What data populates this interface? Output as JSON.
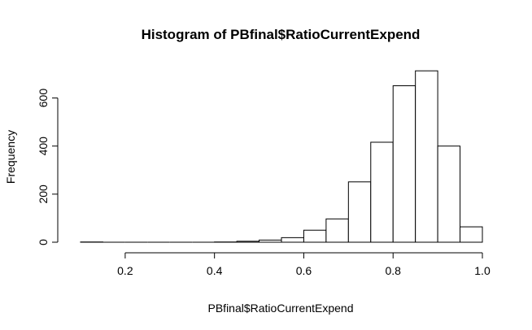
{
  "chart_data": {
    "type": "bar",
    "title": "Histogram of PBfinal$RatioCurrentExpend",
    "xlabel": "PBfinal$RatioCurrentExpend",
    "ylabel": "Frequency",
    "xlim": [
      0.1,
      1.0
    ],
    "ylim": [
      0,
      700
    ],
    "xticks": [
      "0.2",
      "0.4",
      "0.6",
      "0.8",
      "1.0"
    ],
    "yticks": [
      "0",
      "200",
      "400",
      "600"
    ],
    "bin_width": 0.05,
    "bins": [
      {
        "start": 0.1,
        "end": 0.15,
        "count": 1
      },
      {
        "start": 0.15,
        "end": 0.2,
        "count": 0
      },
      {
        "start": 0.2,
        "end": 0.25,
        "count": 0
      },
      {
        "start": 0.25,
        "end": 0.3,
        "count": 0
      },
      {
        "start": 0.3,
        "end": 0.35,
        "count": 0
      },
      {
        "start": 0.35,
        "end": 0.4,
        "count": 0
      },
      {
        "start": 0.4,
        "end": 0.45,
        "count": 1
      },
      {
        "start": 0.45,
        "end": 0.5,
        "count": 4
      },
      {
        "start": 0.5,
        "end": 0.55,
        "count": 9
      },
      {
        "start": 0.55,
        "end": 0.6,
        "count": 19
      },
      {
        "start": 0.6,
        "end": 0.65,
        "count": 50
      },
      {
        "start": 0.65,
        "end": 0.7,
        "count": 97
      },
      {
        "start": 0.7,
        "end": 0.75,
        "count": 251
      },
      {
        "start": 0.75,
        "end": 0.8,
        "count": 416
      },
      {
        "start": 0.8,
        "end": 0.85,
        "count": 651
      },
      {
        "start": 0.85,
        "end": 0.9,
        "count": 713
      },
      {
        "start": 0.9,
        "end": 0.95,
        "count": 400
      },
      {
        "start": 0.95,
        "end": 1.0,
        "count": 64
      }
    ],
    "grid": false,
    "legend": "none"
  }
}
